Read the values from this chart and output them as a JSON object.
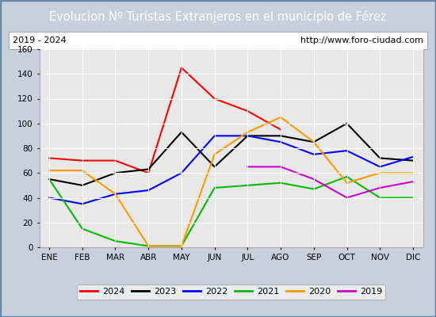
{
  "title": "Evolucion Nº Turistas Extranjeros en el municipio de Férez",
  "subtitle_left": "2019 - 2024",
  "subtitle_right": "http://www.foro-ciudad.com",
  "months": [
    "ENE",
    "FEB",
    "MAR",
    "ABR",
    "MAY",
    "JUN",
    "JUL",
    "AGO",
    "SEP",
    "OCT",
    "NOV",
    "DIC"
  ],
  "series": {
    "2024": {
      "color": "#ff0000",
      "data": [
        72,
        70,
        70,
        60,
        145,
        120,
        110,
        95,
        null,
        null,
        null,
        null
      ]
    },
    "2023": {
      "color": "#000000",
      "data": [
        55,
        50,
        60,
        63,
        93,
        65,
        90,
        90,
        85,
        100,
        72,
        70
      ]
    },
    "2022": {
      "color": "#0000ff",
      "data": [
        40,
        35,
        43,
        46,
        60,
        90,
        90,
        85,
        75,
        78,
        65,
        73
      ]
    },
    "2021": {
      "color": "#00bb00",
      "data": [
        55,
        15,
        5,
        1,
        1,
        48,
        50,
        52,
        47,
        57,
        40,
        40
      ]
    },
    "2020": {
      "color": "#ff9900",
      "data": [
        62,
        62,
        43,
        1,
        1,
        75,
        93,
        105,
        85,
        52,
        60,
        60
      ]
    },
    "2019": {
      "color": "#cc00cc",
      "data": [
        null,
        null,
        null,
        null,
        null,
        null,
        65,
        65,
        55,
        40,
        48,
        53
      ]
    }
  },
  "ylim": [
    0,
    160
  ],
  "yticks": [
    0,
    20,
    40,
    60,
    80,
    100,
    120,
    140,
    160
  ],
  "fig_bg": "#c8d0dc",
  "plot_bg": "#e8e8e8",
  "title_bg": "#4472c4",
  "title_color": "#ffffff",
  "grid_color": "#ffffff",
  "subtitle_bg": "#ffffff",
  "series_order": [
    "2024",
    "2023",
    "2022",
    "2021",
    "2020",
    "2019"
  ],
  "title_fontsize": 10.5,
  "subtitle_fontsize": 8,
  "tick_fontsize": 7.5,
  "legend_fontsize": 8
}
